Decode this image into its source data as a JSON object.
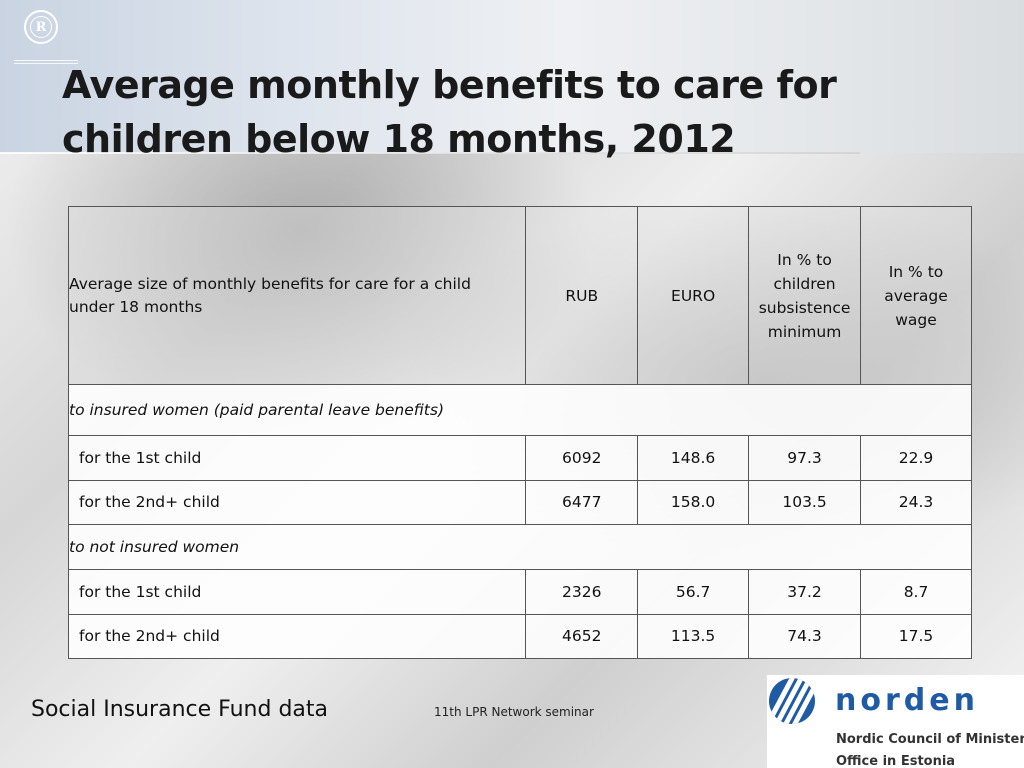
{
  "slide": {
    "title": "Average monthly benefits to care for children below 18 months, 2012",
    "source": "Social Insurance Fund data",
    "footer_center": "11th LPR Network seminar",
    "hse_logo_letter": "R",
    "norden": {
      "wordmark": "norden",
      "line1": "Nordic Council of Ministers’",
      "line2": "Office in Estonia"
    },
    "accent_color": "#1f5aa5"
  },
  "table": {
    "headers": [
      "Average size of monthly benefits for care for a child under 18 months",
      "RUB",
      "EURO",
      "In % to children subsistence minimum",
      "In % to average wage"
    ],
    "groups": [
      {
        "label": "to insured women (paid parental leave benefits)",
        "rows": [
          [
            "for the 1st child",
            "6092",
            "148.6",
            "97.3",
            "22.9"
          ],
          [
            "for the 2nd+ child",
            "6477",
            "158.0",
            "103.5",
            "24.3"
          ]
        ]
      },
      {
        "label": "to not insured women",
        "rows": [
          [
            "for the 1st child",
            "2326",
            "56.7",
            "37.2",
            "8.7"
          ],
          [
            "for the 2nd+ child",
            "4652",
            "113.5",
            "74.3",
            "17.5"
          ]
        ]
      }
    ]
  }
}
